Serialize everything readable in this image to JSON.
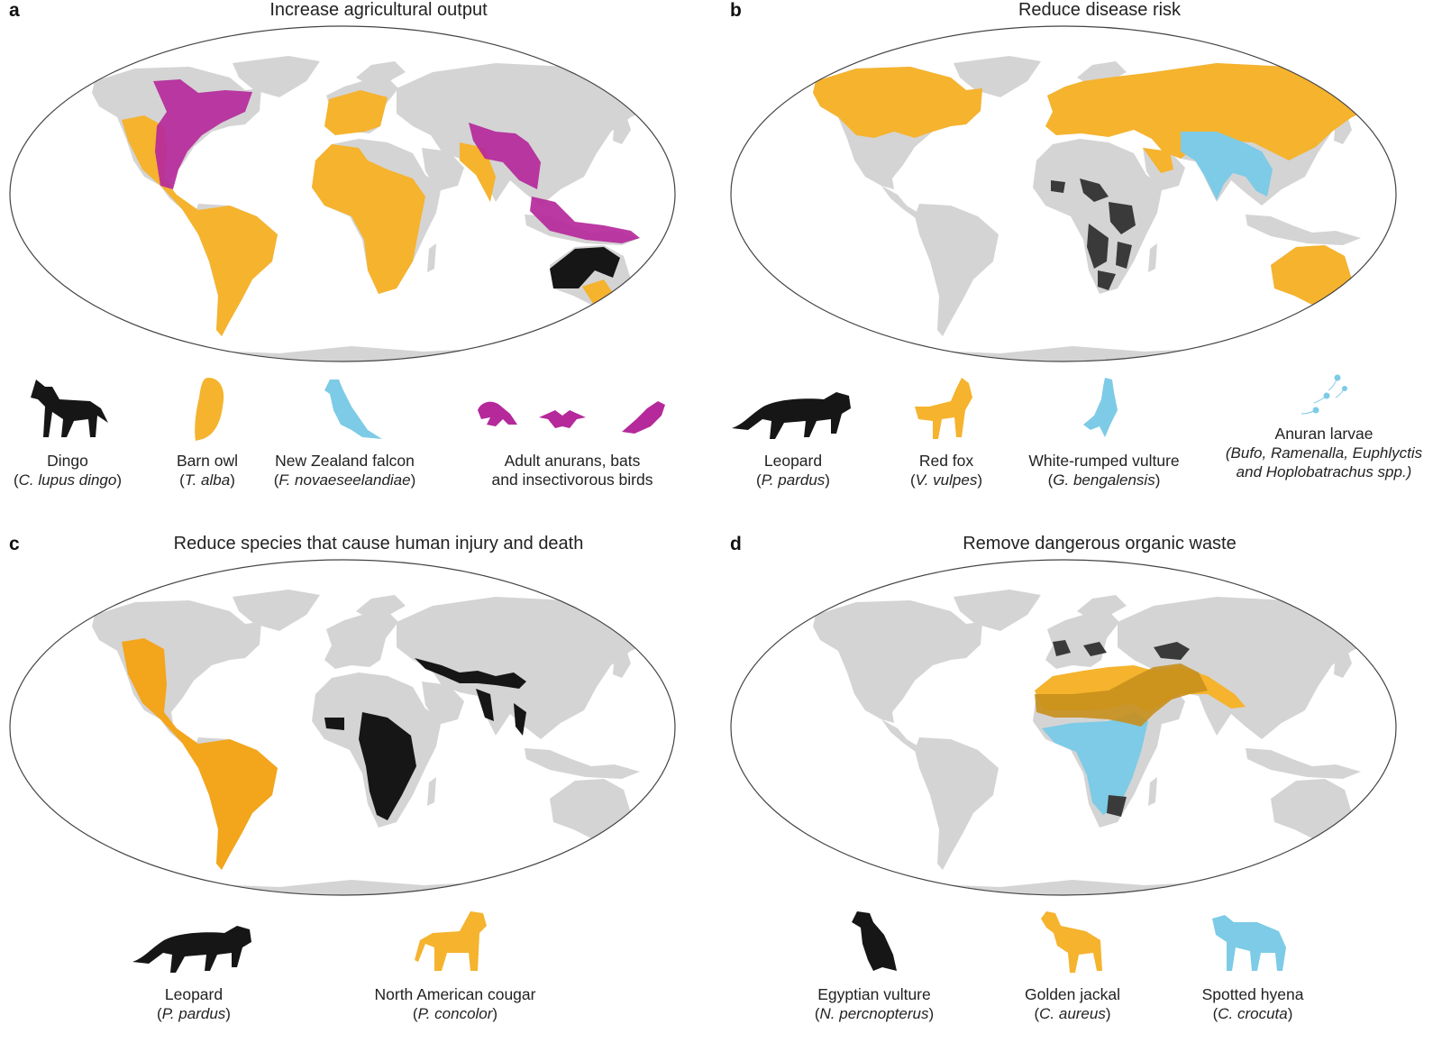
{
  "colors": {
    "land": "#d4d4d4",
    "outline": "#444444",
    "orange": "#f5b32e",
    "amber": "#f3a51b",
    "magenta": "#b5299b",
    "black": "#161616",
    "blue": "#7dcbe6",
    "dark_gold": "#c88f1c"
  },
  "panels": [
    {
      "letter": "a",
      "title": "Increase agricultural output",
      "legend": [
        {
          "icon": "dingo-icon",
          "name": "Dingo",
          "sci_prefix": "(",
          "sci": "C. lupus dingo",
          "sci_suffix": ")"
        },
        {
          "icon": "barn-owl-icon",
          "name": "Barn owl",
          "sci_prefix": "(",
          "sci": "T. alba",
          "sci_suffix": ")"
        },
        {
          "icon": "falcon-icon",
          "name": "New Zealand falcon",
          "sci_prefix": "(",
          "sci": "F. novaeseelandiae",
          "sci_suffix": ")"
        },
        {
          "icon": "frog-bat-bird-icon",
          "name": "Adult anurans, bats",
          "name2": "and insectivorous birds"
        }
      ]
    },
    {
      "letter": "b",
      "title": "Reduce disease risk",
      "legend": [
        {
          "icon": "leopard-icon",
          "name": "Leopard",
          "sci_prefix": "(",
          "sci": "P. pardus",
          "sci_suffix": ")"
        },
        {
          "icon": "red-fox-icon",
          "name": "Red fox",
          "sci_prefix": "(",
          "sci": "V. vulpes",
          "sci_suffix": ")"
        },
        {
          "icon": "vulture-icon",
          "name": "White-rumped vulture",
          "sci_prefix": "(",
          "sci": "G. bengalensis",
          "sci_suffix": ")"
        },
        {
          "icon": "tadpole-icon",
          "name": "Anuran larvae",
          "line2": "(Bufo, Ramenalla, Euphlyctis",
          "line3": "and Hoplobatrachus spp.)"
        }
      ]
    },
    {
      "letter": "c",
      "title": "Reduce species that cause human injury and death",
      "legend": [
        {
          "icon": "leopard-icon",
          "name": "Leopard",
          "sci_prefix": "(",
          "sci": "P. pardus",
          "sci_suffix": ")"
        },
        {
          "icon": "cougar-icon",
          "name": "North American cougar",
          "sci_prefix": "(",
          "sci": "P. concolor",
          "sci_suffix": ")"
        }
      ]
    },
    {
      "letter": "d",
      "title": "Remove dangerous organic waste",
      "legend": [
        {
          "icon": "egyptian-vulture-icon",
          "name": "Egyptian vulture",
          "sci_prefix": "(",
          "sci": "N. percnopterus",
          "sci_suffix": ")"
        },
        {
          "icon": "golden-jackal-icon",
          "name": "Golden jackal",
          "sci_prefix": "(",
          "sci": "C. aureus",
          "sci_suffix": ")"
        },
        {
          "icon": "hyena-icon",
          "name": "Spotted hyena",
          "sci_prefix": "(",
          "sci": "C. crocuta",
          "sci_suffix": ")"
        }
      ]
    }
  ]
}
